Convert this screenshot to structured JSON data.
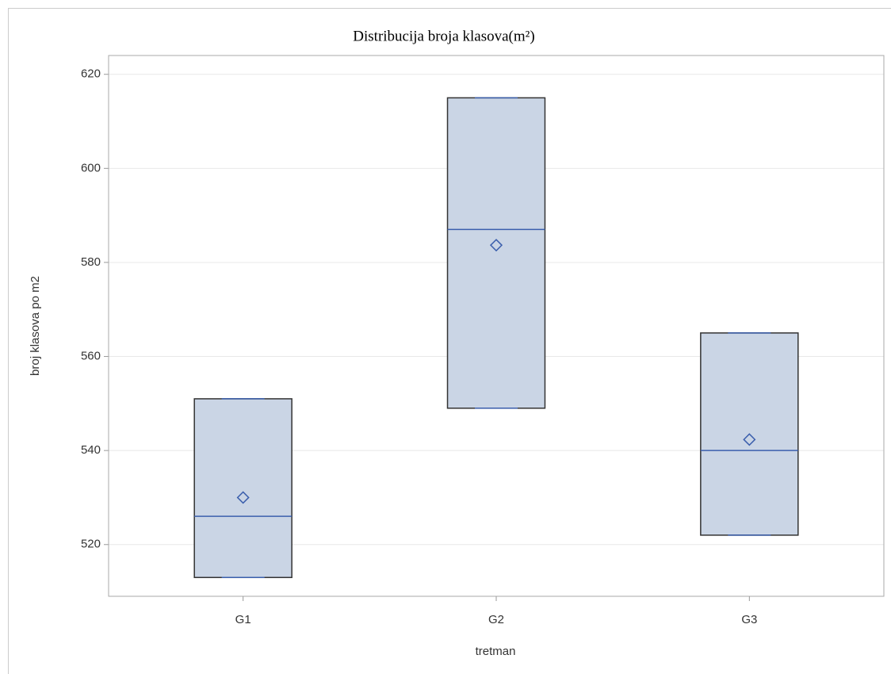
{
  "chart_data": {
    "type": "box",
    "title": "Distribucija broja klasova(m²)",
    "x_label": "tretman",
    "y_label": "broj klasova po m2",
    "categories": [
      "G1",
      "G2",
      "G3"
    ],
    "min": [
      513,
      549,
      522
    ],
    "q1": [
      513,
      549,
      522
    ],
    "median": [
      526,
      587,
      540
    ],
    "q3": [
      551,
      615,
      565
    ],
    "max": [
      551,
      615,
      565
    ],
    "mean": [
      530,
      583.67,
      542.33
    ],
    "box_color": "#cad5e5",
    "line_color": "#3b5fad",
    "ylim": [
      509,
      624
    ],
    "yticks": [
      520,
      540,
      560,
      580,
      600,
      620
    ],
    "grid": true
  }
}
